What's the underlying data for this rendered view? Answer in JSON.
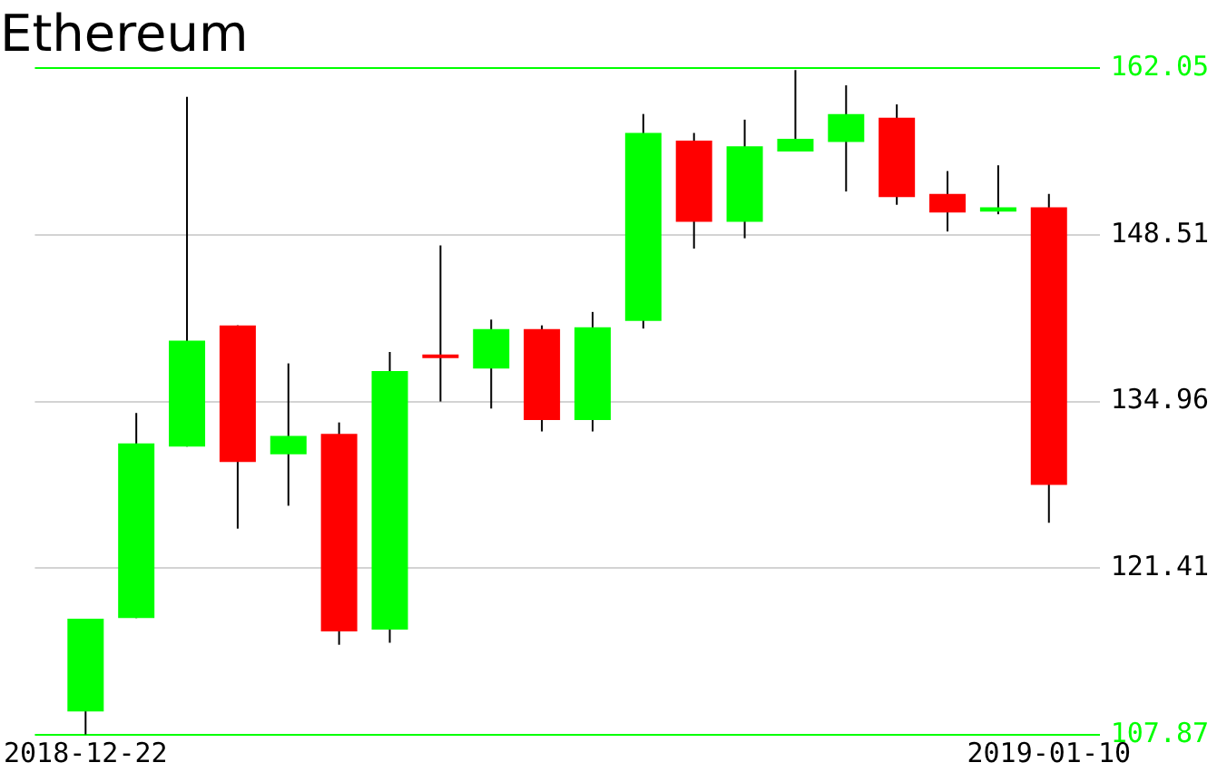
{
  "chart_data": {
    "type": "candlestick",
    "title": "Ethereum",
    "x": [
      "2018-12-22",
      "2018-12-23",
      "2018-12-24",
      "2018-12-25",
      "2018-12-26",
      "2018-12-27",
      "2018-12-28",
      "2018-12-29",
      "2018-12-30",
      "2018-12-31",
      "2019-01-01",
      "2019-01-02",
      "2019-01-03",
      "2019-01-04",
      "2019-01-05",
      "2019-01-06",
      "2019-01-07",
      "2019-01-08",
      "2019-01-09",
      "2019-01-10"
    ],
    "xlim": [
      "2018-12-21",
      "2019-01-11"
    ],
    "xticks": [
      "2018-12-22",
      "2019-01-10"
    ],
    "ohlc": [
      [
        109.77,
        117.31,
        107.9,
        117.31
      ],
      [
        117.36,
        134.03,
        117.36,
        131.55
      ],
      [
        131.29,
        159.73,
        131.29,
        139.91
      ],
      [
        141.15,
        141.15,
        124.63,
        130.05
      ],
      [
        130.67,
        138.06,
        126.49,
        132.17
      ],
      [
        132.33,
        133.26,
        115.19,
        116.28
      ],
      [
        116.43,
        138.98,
        115.35,
        137.44
      ],
      [
        138.63,
        147.65,
        134.96,
        138.63
      ],
      [
        137.64,
        141.62,
        134.39,
        140.84
      ],
      [
        140.84,
        141.15,
        132.53,
        133.46
      ],
      [
        133.46,
        142.24,
        132.53,
        141.0
      ],
      [
        141.51,
        158.33,
        140.89,
        156.79
      ],
      [
        156.17,
        156.79,
        147.39,
        149.56
      ],
      [
        149.56,
        157.87,
        148.23,
        155.7
      ],
      [
        155.28,
        161.9,
        155.28,
        156.32
      ],
      [
        156.06,
        160.66,
        152.03,
        158.33
      ],
      [
        158.03,
        159.11,
        150.95,
        151.57
      ],
      [
        151.83,
        153.69,
        148.78,
        150.33
      ],
      [
        150.39,
        154.16,
        150.18,
        150.75
      ],
      [
        150.75,
        151.83,
        125.1,
        128.19
      ]
    ],
    "colors": [
      "#00ff00",
      "#00ff00",
      "#00ff00",
      "#ff0000",
      "#00ff00",
      "#ff0000",
      "#00ff00",
      "#ff0000",
      "#00ff00",
      "#ff0000",
      "#00ff00",
      "#00ff00",
      "#ff0000",
      "#00ff00",
      "#00ff00",
      "#00ff00",
      "#ff0000",
      "#ff0000",
      "#00ff00",
      "#ff0000"
    ],
    "ylim": [
      107.87,
      162.05
    ],
    "yticks": [
      107.87,
      121.41,
      134.96,
      148.51,
      162.05
    ],
    "grid": "y"
  }
}
